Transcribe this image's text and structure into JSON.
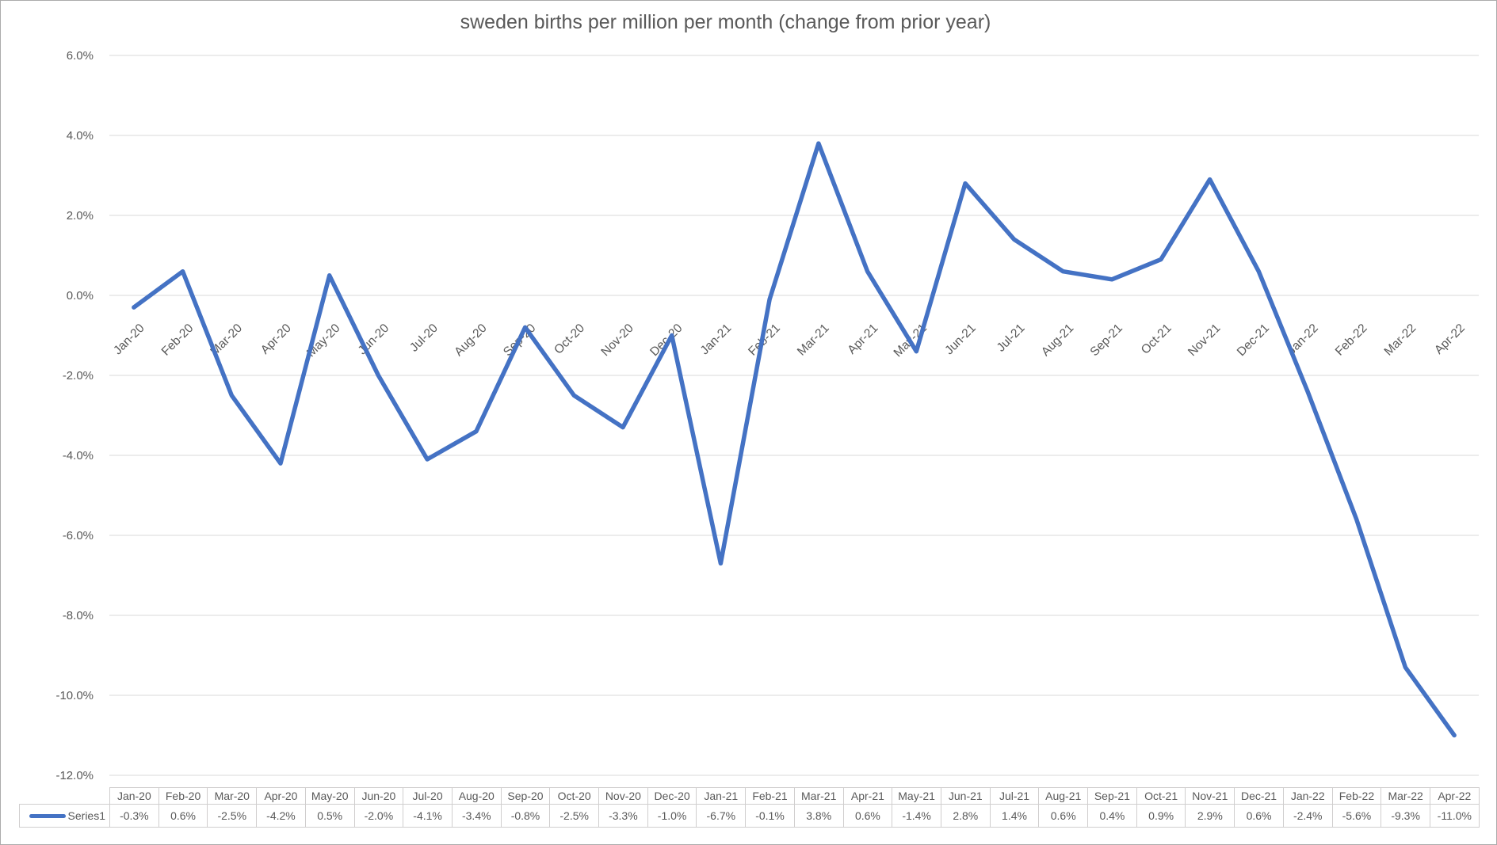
{
  "title": "sweden births per million per month (change from prior year)",
  "legend": {
    "series_label": "Series1"
  },
  "colors": {
    "line": "#4472C4",
    "gridline": "#D9D9D9",
    "text": "#595959",
    "table_border": "#D0CECE",
    "frame_border": "#ABABAB",
    "background": "#FFFFFF"
  },
  "chart_data": {
    "type": "line",
    "title": "sweden births per million per month (change from prior year)",
    "categories": [
      "Jan-20",
      "Feb-20",
      "Mar-20",
      "Apr-20",
      "May-20",
      "Jun-20",
      "Jul-20",
      "Aug-20",
      "Sep-20",
      "Oct-20",
      "Nov-20",
      "Dec-20",
      "Jan-21",
      "Feb-21",
      "Mar-21",
      "Apr-21",
      "May-21",
      "Jun-21",
      "Jul-21",
      "Aug-21",
      "Sep-21",
      "Oct-21",
      "Nov-21",
      "Dec-21",
      "Jan-22",
      "Feb-22",
      "Mar-22",
      "Apr-22"
    ],
    "series": [
      {
        "name": "Series1",
        "values": [
          -0.3,
          0.6,
          -2.5,
          -4.2,
          0.5,
          -2.0,
          -4.1,
          -3.4,
          -0.8,
          -2.5,
          -3.3,
          -1.0,
          -6.7,
          -0.1,
          3.8,
          0.6,
          -1.4,
          2.8,
          1.4,
          0.6,
          0.4,
          0.9,
          2.9,
          0.6,
          -2.4,
          -5.6,
          -9.3,
          -11.0
        ],
        "values_display": [
          "-0.3%",
          "0.6%",
          "-2.5%",
          "-4.2%",
          "0.5%",
          "-2.0%",
          "-4.1%",
          "-3.4%",
          "-0.8%",
          "-2.5%",
          "-3.3%",
          "-1.0%",
          "-6.7%",
          "-0.1%",
          "3.8%",
          "0.6%",
          "-1.4%",
          "2.8%",
          "1.4%",
          "0.6%",
          "0.4%",
          "0.9%",
          "2.9%",
          "0.6%",
          "-2.4%",
          "-5.6%",
          "-9.3%",
          "-11.0%"
        ]
      }
    ],
    "xlabel": "",
    "ylabel": "",
    "y_axis": {
      "unit": "%",
      "min": -12.0,
      "max": 6.0,
      "tick_values": [
        6,
        4,
        2,
        0,
        -2,
        -4,
        -6,
        -8,
        -10,
        -12
      ],
      "tick_labels": [
        "6.0%",
        "4.0%",
        "2.0%",
        "0.0%",
        "-2.0%",
        "-4.0%",
        "-6.0%",
        "-8.0%",
        "-10.0%",
        "-12.0%"
      ]
    },
    "x_axis": {
      "label_rotation_deg": 45,
      "labels_at_zero_line": true
    },
    "grid": true,
    "legend_position": "bottom-left-in-data-table",
    "data_table_shown": true
  }
}
